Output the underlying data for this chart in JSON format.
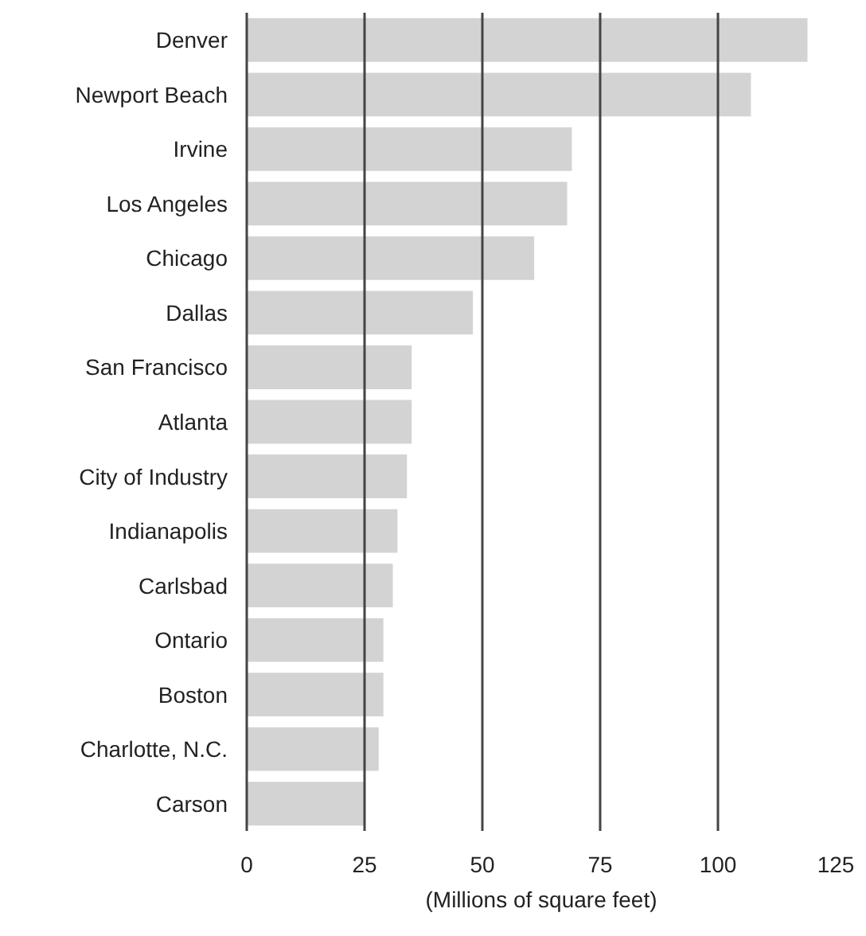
{
  "chart_data": {
    "type": "bar",
    "orientation": "horizontal",
    "xlabel": "(Millions of square feet)",
    "categories": [
      "Denver",
      "Newport Beach",
      "Irvine",
      "Los Angeles",
      "Chicago",
      "Dallas",
      "San Francisco",
      "Atlanta",
      "City of Industry",
      "Indianapolis",
      "Carlsbad",
      "Ontario",
      "Boston",
      "Charlotte, N.C.",
      "Carson"
    ],
    "values": [
      119,
      107,
      69,
      68,
      61,
      48,
      35,
      35,
      34,
      32,
      31,
      29,
      29,
      28,
      25
    ],
    "color": "#d3d3d3",
    "xlim": [
      0,
      125
    ],
    "xticks": [
      0,
      25,
      50,
      75,
      100,
      125
    ],
    "grid": "x"
  }
}
